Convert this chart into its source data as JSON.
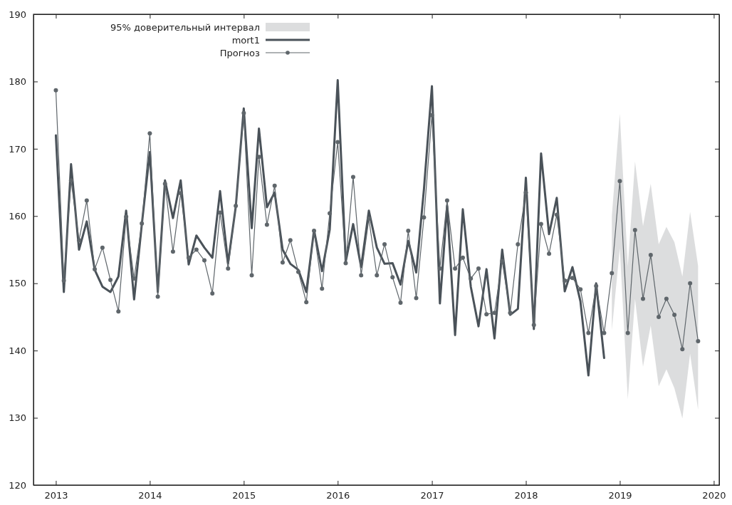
{
  "chart_data": {
    "type": "line",
    "xlim": [
      "2012-10-06",
      "2020-01-22"
    ],
    "xticks": [
      {
        "value": "2013",
        "label": "2013"
      },
      {
        "value": "2014",
        "label": "2014"
      },
      {
        "value": "2015",
        "label": "2015"
      },
      {
        "value": "2016",
        "label": "2016"
      },
      {
        "value": "2017",
        "label": "2017"
      },
      {
        "value": "2018",
        "label": "2018"
      },
      {
        "value": "2019",
        "label": "2019"
      },
      {
        "value": "2020",
        "label": "2020"
      }
    ],
    "ylim": [
      120,
      190
    ],
    "yticks": [
      120,
      130,
      140,
      150,
      160,
      170,
      180,
      190
    ],
    "grid": false,
    "legend": "top left",
    "annotations": [
      "95% доверительный интервал"
    ],
    "series": [
      {
        "name": "mort1",
        "color": "#4a5259",
        "marker": "none",
        "x": [
          "2013-01",
          "2013-02",
          "2013-03",
          "2013-04",
          "2013-05",
          "2013-06",
          "2013-07",
          "2013-08",
          "2013-09",
          "2013-10",
          "2013-11",
          "2013-12",
          "2014-01",
          "2014-02",
          "2014-03",
          "2014-04",
          "2014-05",
          "2014-06",
          "2014-07",
          "2014-08",
          "2014-09",
          "2014-10",
          "2014-11",
          "2014-12",
          "2015-01",
          "2015-02",
          "2015-03",
          "2015-04",
          "2015-05",
          "2015-06",
          "2015-07",
          "2015-08",
          "2015-09",
          "2015-10",
          "2015-11",
          "2015-12",
          "2016-01",
          "2016-02",
          "2016-03",
          "2016-04",
          "2016-05",
          "2016-06",
          "2016-07",
          "2016-08",
          "2016-09",
          "2016-10",
          "2016-11",
          "2016-12",
          "2017-01",
          "2017-02",
          "2017-03",
          "2017-04",
          "2017-05",
          "2017-06",
          "2017-07",
          "2017-08",
          "2017-09",
          "2017-10",
          "2017-11",
          "2017-12",
          "2018-01",
          "2018-02",
          "2018-03",
          "2018-04",
          "2018-05",
          "2018-06",
          "2018-07",
          "2018-08",
          "2018-09",
          "2018-10",
          "2018-11"
        ],
        "values": [
          172,
          148.7,
          167.7,
          155,
          159.2,
          152,
          149.5,
          148.7,
          151,
          160.8,
          147.6,
          158.8,
          169.5,
          148.7,
          165.3,
          159.7,
          165.3,
          152.8,
          157.1,
          155.3,
          153.8,
          163.7,
          153,
          161.4,
          176,
          158.2,
          173,
          161.3,
          163.5,
          155,
          152.9,
          152,
          148.7,
          157.9,
          151.8,
          158,
          180.2,
          153.2,
          158.8,
          152.4,
          160.8,
          155.3,
          152.9,
          153,
          149.8,
          156.3,
          151.6,
          164,
          179.3,
          147,
          161.5,
          142.3,
          161,
          149.5,
          143.6,
          152.1,
          141.8,
          155,
          145.3,
          146.2,
          165.7,
          143.2,
          169.3,
          157.3,
          162.7,
          148.8,
          152.4,
          147.3,
          136.3,
          150,
          138.9
        ]
      },
      {
        "name": "Прогноз",
        "lower": [
          null,
          null,
          null,
          null,
          null,
          null,
          null,
          null,
          null,
          null,
          null,
          null,
          null,
          null,
          null,
          null,
          null,
          null,
          null,
          null,
          null,
          null,
          null,
          null,
          null,
          null,
          null,
          null,
          null,
          null,
          null,
          null,
          null,
          null,
          null,
          null,
          null,
          null,
          null,
          null,
          null,
          null,
          null,
          null,
          null,
          null,
          null,
          null,
          null,
          null,
          null,
          null,
          null,
          null,
          null,
          null,
          null,
          null,
          null,
          null,
          null,
          null,
          null,
          null,
          null,
          null,
          null,
          null,
          null,
          null,
          null,
          143,
          155.2,
          132.8,
          147.7,
          137.6,
          143.7,
          134.7,
          137.2,
          134.4,
          129.9,
          139.5,
          131.2
        ],
        "upper": [
          null,
          null,
          null,
          null,
          null,
          null,
          null,
          null,
          null,
          null,
          null,
          null,
          null,
          null,
          null,
          null,
          null,
          null,
          null,
          null,
          null,
          null,
          null,
          null,
          null,
          null,
          null,
          null,
          null,
          null,
          null,
          null,
          null,
          null,
          null,
          null,
          null,
          null,
          null,
          null,
          null,
          null,
          null,
          null,
          null,
          null,
          null,
          null,
          null,
          null,
          null,
          null,
          null,
          null,
          null,
          null,
          null,
          null,
          null,
          null,
          null,
          null,
          null,
          null,
          null,
          null,
          null,
          null,
          null,
          null,
          null,
          160,
          175.2,
          152.5,
          168.1,
          158.5,
          164.8,
          155.8,
          158.4,
          156.1,
          151,
          160.6,
          152.6
        ],
        "color": "#5f666b",
        "marker": "circle",
        "x": [
          "2013-01",
          "2013-02",
          "2013-03",
          "2013-04",
          "2013-05",
          "2013-06",
          "2013-07",
          "2013-08",
          "2013-09",
          "2013-10",
          "2013-11",
          "2013-12",
          "2014-01",
          "2014-02",
          "2014-03",
          "2014-04",
          "2014-05",
          "2014-06",
          "2014-07",
          "2014-08",
          "2014-09",
          "2014-10",
          "2014-11",
          "2014-12",
          "2015-01",
          "2015-02",
          "2015-03",
          "2015-04",
          "2015-05",
          "2015-06",
          "2015-07",
          "2015-08",
          "2015-09",
          "2015-10",
          "2015-11",
          "2015-12",
          "2016-01",
          "2016-02",
          "2016-03",
          "2016-04",
          "2016-05",
          "2016-06",
          "2016-07",
          "2016-08",
          "2016-09",
          "2016-10",
          "2016-11",
          "2016-12",
          "2017-01",
          "2017-02",
          "2017-03",
          "2017-04",
          "2017-05",
          "2017-06",
          "2017-07",
          "2017-08",
          "2017-09",
          "2017-10",
          "2017-11",
          "2017-12",
          "2018-01",
          "2018-02",
          "2018-03",
          "2018-04",
          "2018-05",
          "2018-06",
          "2018-07",
          "2018-08",
          "2018-09",
          "2018-10",
          "2018-11",
          "2018-12",
          "2019-01",
          "2019-02",
          "2019-03",
          "2019-04",
          "2019-05",
          "2019-06",
          "2019-07",
          "2019-08",
          "2019-09",
          "2019-10",
          "2019-11"
        ],
        "values": [
          178.7,
          150.4,
          165.3,
          156.4,
          162.3,
          152.1,
          155.3,
          150.5,
          145.8,
          159.9,
          150.7,
          158.9,
          172.3,
          148,
          164.8,
          154.7,
          163.4,
          153.8,
          155,
          153.4,
          148.5,
          160.5,
          152.2,
          161.5,
          175.3,
          151.2,
          168.8,
          158.7,
          164.5,
          153.1,
          156.4,
          151.7,
          147.2,
          157.8,
          149.2,
          160.4,
          171,
          153,
          165.8,
          151.2,
          159.6,
          151.2,
          155.8,
          150.9,
          147.1,
          157.8,
          147.8,
          159.8,
          175,
          152.2,
          162.3,
          152.2,
          153.8,
          150.7,
          152.2,
          145.4,
          145.6,
          153.3,
          145.6,
          155.8,
          163.5,
          143.8,
          158.8,
          154.4,
          160.2,
          150.4,
          150.8,
          149.1,
          142.6,
          149.6,
          142.6,
          151.5,
          165.2,
          142.6,
          157.9,
          147.7,
          154.2,
          145,
          147.7,
          145.3,
          140.2,
          150,
          141.4
        ]
      }
    ]
  }
}
